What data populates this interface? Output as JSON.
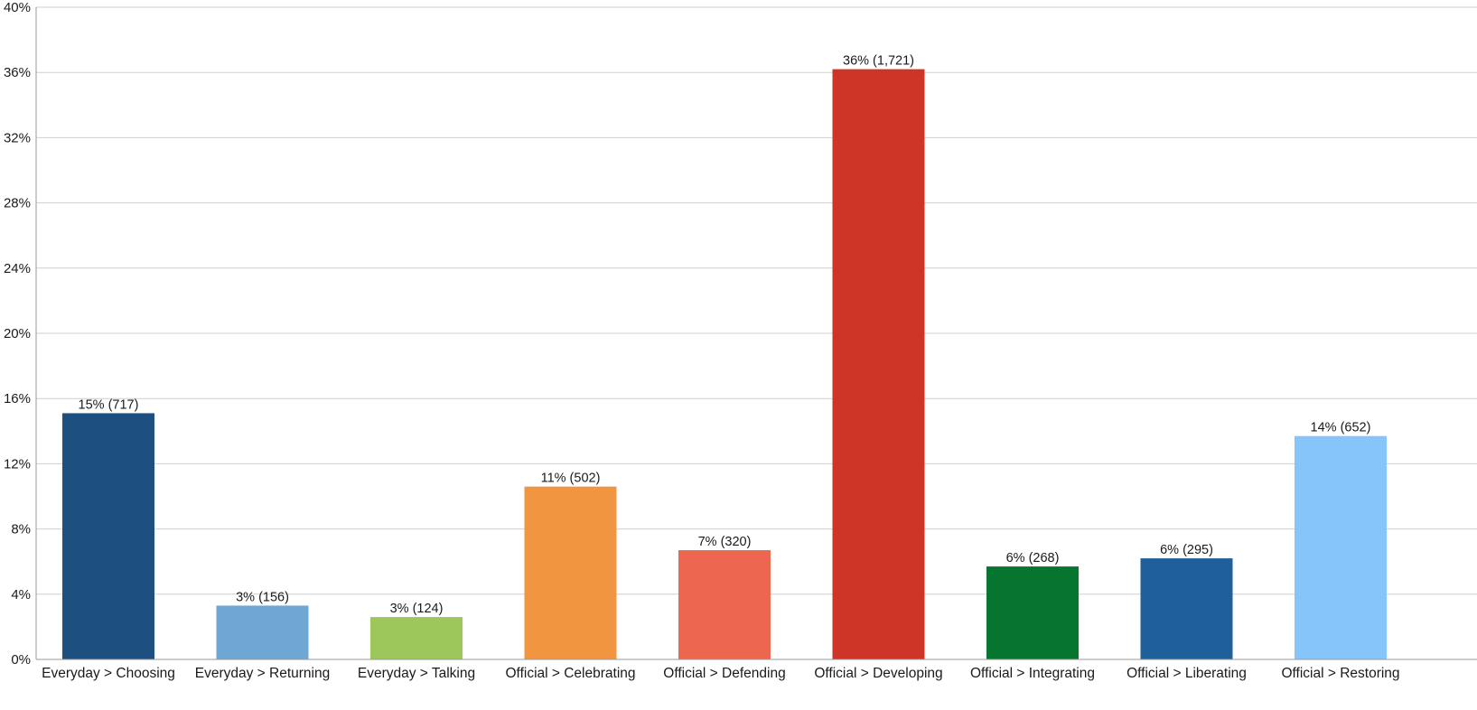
{
  "chart_data": {
    "type": "bar",
    "categories": [
      "Everyday > Choosing",
      "Everyday > Returning",
      "Everyday > Talking",
      "Official > Celebrating",
      "Official > Defending",
      "Official > Developing",
      "Official > Integrating",
      "Official > Liberating",
      "Official > Restoring"
    ],
    "values": [
      15.1,
      3.3,
      2.6,
      10.6,
      6.7,
      36.2,
      5.7,
      6.2,
      13.7
    ],
    "counts": [
      717,
      156,
      124,
      502,
      320,
      1721,
      268,
      295,
      652
    ],
    "data_labels": [
      "15% (717)",
      "3% (156)",
      "3% (124)",
      "11% (502)",
      "7% (320)",
      "36% (1,721)",
      "6% (268)",
      "6% (295)",
      "14% (652)"
    ],
    "colors": [
      "#1d5080",
      "#6fa7d4",
      "#9dc75a",
      "#f29541",
      "#ec6650",
      "#cf3526",
      "#06752f",
      "#20609a",
      "#85c5f9"
    ],
    "yticks": [
      "0%",
      "4%",
      "8%",
      "12%",
      "16%",
      "20%",
      "24%",
      "28%",
      "32%",
      "36%",
      "40%"
    ],
    "ylim": [
      0,
      40
    ],
    "grid": true,
    "title": "",
    "xlabel": "",
    "ylabel": ""
  }
}
